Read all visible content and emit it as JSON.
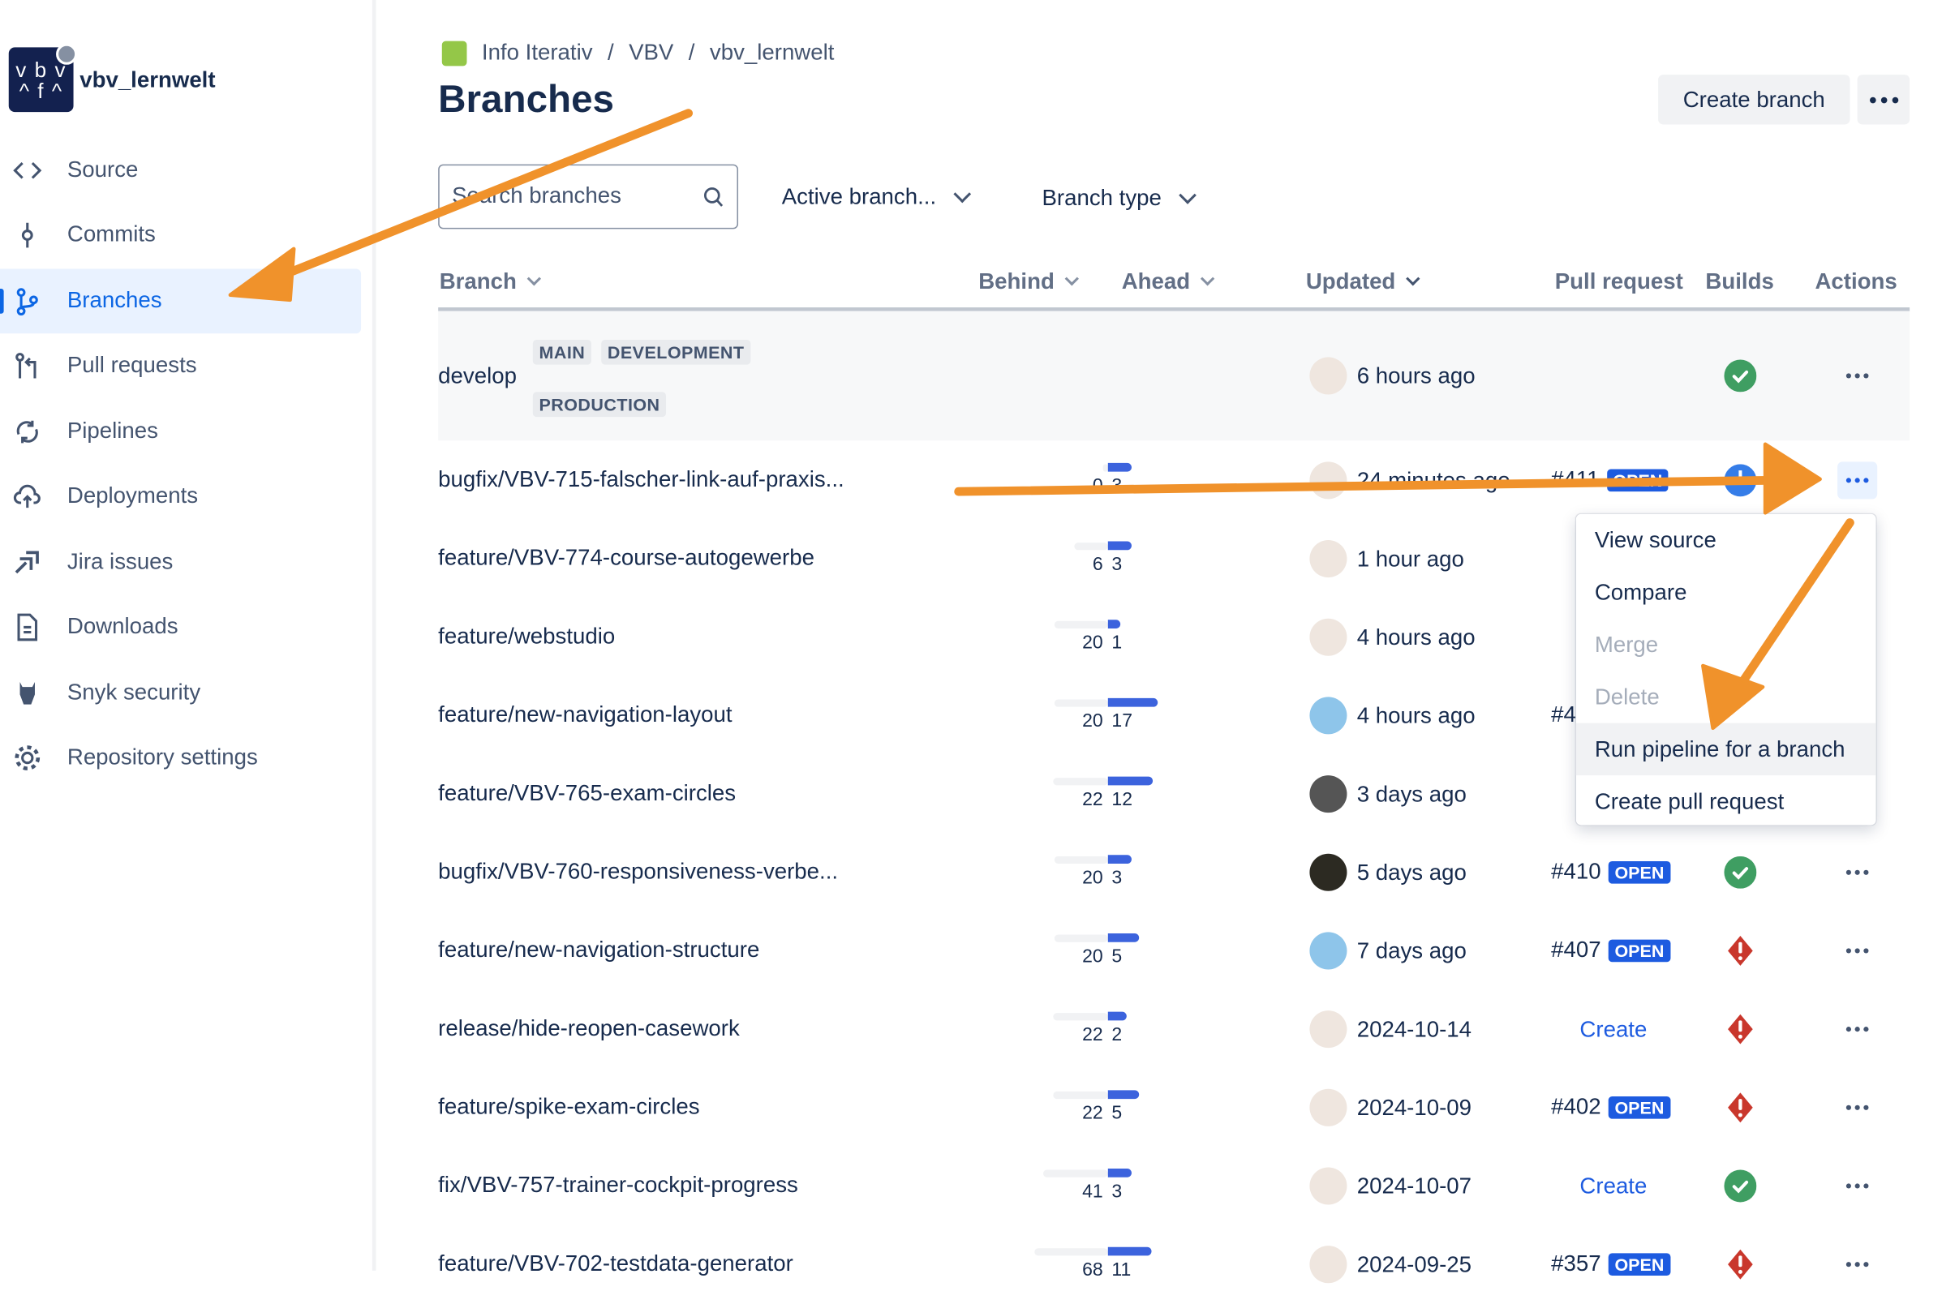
{
  "repo": {
    "name": "vbv_lernwelt",
    "logo_text": "vbv afa"
  },
  "sidebar": {
    "items": [
      {
        "label": "Source",
        "icon": "code-icon"
      },
      {
        "label": "Commits",
        "icon": "commit-icon"
      },
      {
        "label": "Branches",
        "icon": "branch-icon",
        "active": true
      },
      {
        "label": "Pull requests",
        "icon": "pull-request-icon"
      },
      {
        "label": "Pipelines",
        "icon": "pipelines-icon"
      },
      {
        "label": "Deployments",
        "icon": "cloud-upload-icon"
      },
      {
        "label": "Jira issues",
        "icon": "jira-icon"
      },
      {
        "label": "Downloads",
        "icon": "document-icon"
      },
      {
        "label": "Snyk security",
        "icon": "snyk-icon"
      },
      {
        "label": "Repository settings",
        "icon": "gear-icon"
      }
    ]
  },
  "breadcrumb": [
    "Info Iterativ",
    "VBV",
    "vbv_lernwelt"
  ],
  "header": {
    "title": "Branches",
    "create_branch": "Create branch"
  },
  "filters": {
    "search_placeholder": "Search branches",
    "active": "Active branch...",
    "type": "Branch type"
  },
  "columns": {
    "branch": "Branch",
    "behind": "Behind",
    "ahead": "Ahead",
    "updated": "Updated",
    "pull_request": "Pull request",
    "builds": "Builds",
    "actions": "Actions"
  },
  "main_branch": {
    "name": "develop",
    "labels": [
      "MAIN",
      "DEVELOPMENT",
      "PRODUCTION"
    ],
    "updated": "6 hours ago",
    "build": "success"
  },
  "branches": [
    {
      "name": "bugfix/VBV-715-falscher-link-auf-praxis...",
      "behind": 0,
      "ahead": 3,
      "updated": "24 minutes ago",
      "pr": "#411",
      "pr_state": "OPEN",
      "build": "in-progress",
      "avatar": "man"
    },
    {
      "name": "feature/VBV-774-course-autogewerbe",
      "behind": 6,
      "ahead": 3,
      "updated": "1 hour ago",
      "avatar": "man"
    },
    {
      "name": "feature/webstudio",
      "behind": 20,
      "ahead": 1,
      "updated": "4 hours ago",
      "avatar": "man"
    },
    {
      "name": "feature/new-navigation-layout",
      "behind": 20,
      "ahead": 17,
      "updated": "4 hours ago",
      "pr": "#4",
      "avatar": "pixel"
    },
    {
      "name": "feature/VBV-765-exam-circles",
      "behind": 22,
      "ahead": 12,
      "updated": "3 days ago",
      "avatar": "bw"
    },
    {
      "name": "bugfix/VBV-760-responsiveness-verbe...",
      "behind": 20,
      "ahead": 3,
      "updated": "5 days ago",
      "pr": "#410",
      "pr_state": "OPEN",
      "build": "success",
      "avatar": "dark"
    },
    {
      "name": "feature/new-navigation-structure",
      "behind": 20,
      "ahead": 5,
      "updated": "7 days ago",
      "pr": "#407",
      "pr_state": "OPEN",
      "build": "failed",
      "avatar": "pixel"
    },
    {
      "name": "release/hide-reopen-casework",
      "behind": 22,
      "ahead": 2,
      "updated": "2024-10-14",
      "pr_create": "Create",
      "build": "failed",
      "avatar": "man"
    },
    {
      "name": "feature/spike-exam-circles",
      "behind": 22,
      "ahead": 5,
      "updated": "2024-10-09",
      "pr": "#402",
      "pr_state": "OPEN",
      "build": "failed",
      "avatar": "man"
    },
    {
      "name": "fix/VBV-757-trainer-cockpit-progress",
      "behind": 41,
      "ahead": 3,
      "updated": "2024-10-07",
      "pr_create": "Create",
      "build": "success",
      "avatar": "man"
    },
    {
      "name": "feature/VBV-702-testdata-generator",
      "behind": 68,
      "ahead": 11,
      "updated": "2024-09-25",
      "pr": "#357",
      "pr_state": "OPEN",
      "build": "failed",
      "avatar": "man"
    }
  ],
  "menu": {
    "items": [
      {
        "label": "View source",
        "disabled": false
      },
      {
        "label": "Compare",
        "disabled": false
      },
      {
        "label": "Merge",
        "disabled": true
      },
      {
        "label": "Delete",
        "disabled": true
      },
      {
        "label": "Run pipeline for a branch",
        "disabled": false,
        "highlighted": true
      },
      {
        "label": "Create pull request",
        "disabled": false
      }
    ]
  },
  "colors": {
    "accent": "#0c66e4",
    "annotation_arrow": "#f0922b",
    "success": "#3f9e62",
    "failed": "#c9372c",
    "in_progress": "#357de8",
    "open_badge": "#1d5be0"
  }
}
